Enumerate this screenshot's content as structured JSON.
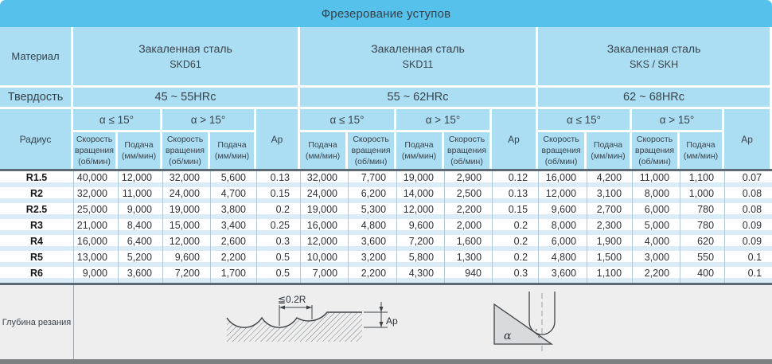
{
  "title": "Фрезерование уступов",
  "row_labels": {
    "material": "Материал",
    "hardness": "Твердость",
    "radius": "Радиус"
  },
  "sections": [
    {
      "material_line1": "Закаленная сталь",
      "material_line2": "SKD61",
      "hardness": "45 ~ 55HRc",
      "alpha_low": "α ≤ 15°",
      "alpha_high": "α > 15°",
      "ap_label": "Ap",
      "col_headers": [
        "Скорость\nвращения\n(об/мин)",
        "Подача\n(мм/мин)",
        "Скорость\nвращения\n(об/мин)",
        "Подача\n(мм/мин)"
      ]
    },
    {
      "material_line1": "Закаленная сталь",
      "material_line2": "SKD11",
      "hardness": "55 ~ 62HRc",
      "alpha_low": "α ≤ 15°",
      "alpha_high": "α > 15°",
      "ap_label": "Ap",
      "col_headers": [
        "Подача\n(мм/мин)",
        "Скорость\nвращения\n(об/мин)",
        "Подача\n(мм/мин)",
        "Скорость\nвращения\n(об/мин)"
      ]
    },
    {
      "material_line1": "Закаленная сталь",
      "material_line2": "SKS / SKH",
      "hardness": "62 ~ 68HRc",
      "alpha_low": "α ≤ 15°",
      "alpha_high": "α > 15°",
      "ap_label": "Ap",
      "col_headers": [
        "Скорость\nвращения\n(об/мин)",
        "Подача\n(мм/мин)",
        "Скорость\nвращения\n(об/мин)",
        "Подача\n(мм/мин)"
      ]
    }
  ],
  "rows": [
    {
      "radius": "R1.5",
      "values": [
        "40,000",
        "12,000",
        "32,000",
        "5,600",
        "0.13",
        "32,000",
        "7,700",
        "19,000",
        "2,900",
        "0.12",
        "16,000",
        "4,200",
        "11,000",
        "1,100",
        "0.07"
      ]
    },
    {
      "radius": "R2",
      "values": [
        "32,000",
        "11,000",
        "24,000",
        "4,700",
        "0.15",
        "24,000",
        "6,200",
        "14,000",
        "2,500",
        "0.13",
        "12,000",
        "3,100",
        "8,000",
        "1,000",
        "0.08"
      ]
    },
    {
      "radius": "R2.5",
      "values": [
        "25,000",
        "9,000",
        "19,000",
        "3,800",
        "0.2",
        "19,000",
        "5,300",
        "12,000",
        "2,200",
        "0.15",
        "9,600",
        "2,700",
        "6,000",
        "780",
        "0.08"
      ]
    },
    {
      "radius": "R3",
      "values": [
        "21,000",
        "8,400",
        "15,000",
        "3,400",
        "0.25",
        "16,000",
        "4,800",
        "9,600",
        "2,000",
        "0.2",
        "8,000",
        "2,300",
        "5,000",
        "780",
        "0.09"
      ]
    },
    {
      "radius": "R4",
      "values": [
        "16,000",
        "6,400",
        "12,000",
        "2,600",
        "0.3",
        "12,000",
        "3,600",
        "7,200",
        "1,600",
        "0.2",
        "6,000",
        "1,900",
        "4,000",
        "620",
        "0.09"
      ]
    },
    {
      "radius": "R5",
      "values": [
        "13,000",
        "5,200",
        "9,600",
        "2,200",
        "0.5",
        "10,000",
        "3,200",
        "5,800",
        "1,300",
        "0.2",
        "4,800",
        "1,500",
        "3,000",
        "550",
        "0.1"
      ]
    },
    {
      "radius": "R6",
      "values": [
        "9,000",
        "3,600",
        "7,200",
        "1,700",
        "0.5",
        "7,000",
        "2,200",
        "4,300",
        "940",
        "0.3",
        "3,600",
        "1,100",
        "2,200",
        "400",
        "0.1"
      ]
    }
  ],
  "bottom": {
    "depth_label": "Глубина резания",
    "scallop_dim": "≦0.2R",
    "ap_label": "Ap",
    "alpha_label": "α"
  },
  "colors": {
    "title_bg": "#56c2ec",
    "header_bg": "#abddf3",
    "row_stripe": "#d9ecf8",
    "dark_separator": "#5d6974",
    "grid_line": "#b3c8d6",
    "bottom_panel_bg": "#eeeeee",
    "bottom_bar": "#7e8182"
  }
}
